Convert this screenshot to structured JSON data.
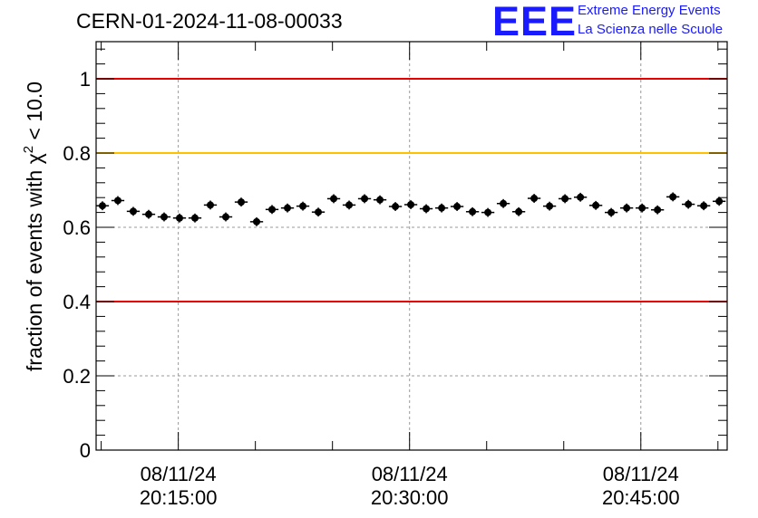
{
  "header": {
    "title": "CERN-01-2024-11-08-00033",
    "logo_text": "EEE",
    "logo_line1": "Extreme Energy Events",
    "logo_line2": "La Scienza nelle Scuole",
    "logo_color": "#1a1aff"
  },
  "chart_data": {
    "type": "scatter",
    "title": "CERN-01-2024-11-08-00033",
    "ylabel": "fraction of events with χ² < 10.0",
    "ylabel_main": "fraction of events with χ",
    "ylabel_sup": "2",
    "ylabel_tail": " < 10.0",
    "xlabel": "",
    "x_unit": "minutes after 2024-11-08 20:00:00",
    "xlim": [
      9.67,
      50.6
    ],
    "ylim": [
      0,
      1.1
    ],
    "grid": true,
    "y_ticks": [
      {
        "value": 0,
        "label": "0"
      },
      {
        "value": 0.2,
        "label": "0.2"
      },
      {
        "value": 0.4,
        "label": "0.4"
      },
      {
        "value": 0.6,
        "label": "0.6"
      },
      {
        "value": 0.8,
        "label": "0.8"
      },
      {
        "value": 1.0,
        "label": "1"
      }
    ],
    "x_ticks": [
      {
        "value": 15,
        "date": "08/11/24",
        "time": "20:15:00"
      },
      {
        "value": 30,
        "date": "08/11/24",
        "time": "20:30:00"
      },
      {
        "value": 45,
        "date": "08/11/24",
        "time": "20:45:00"
      }
    ],
    "reference_lines": [
      {
        "y": 1.0,
        "color": "#e60000"
      },
      {
        "y": 0.8,
        "color": "#ffc000"
      },
      {
        "y": 0.4,
        "color": "#e60000"
      }
    ],
    "x_error": 0.42,
    "y_error": 0.012,
    "x": [
      10.08,
      11.08,
      12.08,
      13.08,
      14.08,
      15.08,
      16.08,
      17.08,
      18.08,
      19.08,
      20.08,
      21.08,
      22.08,
      23.08,
      24.08,
      25.08,
      26.08,
      27.08,
      28.08,
      29.08,
      30.08,
      31.08,
      32.08,
      33.08,
      34.08,
      35.08,
      36.08,
      37.08,
      38.08,
      39.08,
      40.08,
      41.08,
      42.08,
      43.08,
      44.08,
      45.08,
      46.08,
      47.08,
      48.08,
      49.08,
      50.08
    ],
    "values": [
      0.658,
      0.672,
      0.643,
      0.635,
      0.628,
      0.625,
      0.625,
      0.66,
      0.628,
      0.668,
      0.615,
      0.648,
      0.652,
      0.657,
      0.641,
      0.677,
      0.66,
      0.677,
      0.674,
      0.656,
      0.661,
      0.65,
      0.652,
      0.656,
      0.642,
      0.64,
      0.664,
      0.642,
      0.678,
      0.657,
      0.677,
      0.681,
      0.659,
      0.64,
      0.652,
      0.652,
      0.647,
      0.682,
      0.662,
      0.658,
      0.67
    ]
  }
}
